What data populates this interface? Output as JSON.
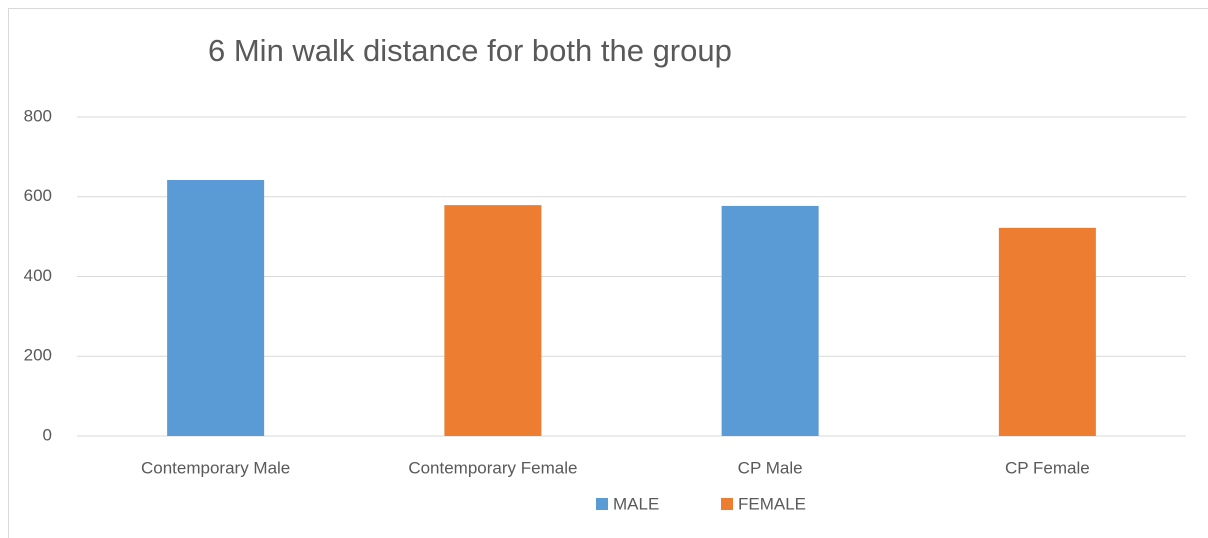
{
  "chart_data": {
    "type": "bar",
    "title": "6 Min walk distance for both the group",
    "categories": [
      "Contemporary Male",
      "Contemporary Female",
      "CP Male",
      "CP Female"
    ],
    "series": [
      {
        "name": "MALE",
        "color": "#5b9bd5",
        "values": [
          642,
          null,
          577,
          null
        ]
      },
      {
        "name": "FEMALE",
        "color": "#ed7d31",
        "values": [
          null,
          579,
          null,
          522
        ]
      }
    ],
    "ylim": [
      0,
      800
    ],
    "yticks": [
      0,
      200,
      400,
      600,
      800
    ],
    "grid": true,
    "legend": "bottom"
  }
}
